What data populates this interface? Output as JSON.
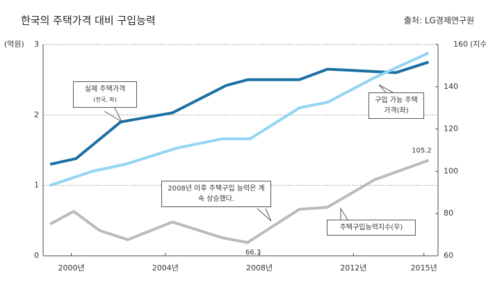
{
  "chart_data": {
    "type": "line",
    "title": "한국의 주택가격 대비 구입능력",
    "source": "출처: LG경제연구원",
    "ylabel": "(억원)",
    "y2label": "(지수)",
    "xlim": [
      1998.8,
      2015.6
    ],
    "xticks": [
      {
        "value": 2000,
        "label": "2000년"
      },
      {
        "value": 2004,
        "label": "2004년"
      },
      {
        "value": 2008,
        "label": "2008년"
      },
      {
        "value": 2012,
        "label": "2012년"
      },
      {
        "value": 2015,
        "label": "2015년"
      }
    ],
    "ylim": [
      0,
      3
    ],
    "yticks": [
      0,
      1,
      2,
      3
    ],
    "y2lim": [
      60,
      160
    ],
    "y2ticks": [
      60,
      80,
      100,
      120,
      140,
      160
    ],
    "grid": true,
    "series": [
      {
        "name": "실제 주택가격",
        "note": "(전국, 좌)",
        "color": "#1b70a3",
        "x": [
          1999.1,
          2000.2,
          2002.1,
          2004.3,
          2006.6,
          2007.5,
          2009.7,
          2010.9,
          2013.8,
          2015.2
        ],
        "values": [
          1.3,
          1.38,
          1.9,
          2.03,
          2.42,
          2.5,
          2.5,
          2.65,
          2.6,
          2.75
        ]
      },
      {
        "name": "구입 가능 주택가격(좌)",
        "color": "#93d4f3",
        "x": [
          1999.1,
          2000.9,
          2002.3,
          2004.5,
          2006.4,
          2007.6,
          2009.7,
          2010.9,
          2012.9,
          2015.2
        ],
        "values": [
          1.0,
          1.2,
          1.3,
          1.53,
          1.66,
          1.66,
          2.1,
          2.18,
          2.53,
          2.88
        ]
      },
      {
        "name": "주택구입능력지수(우)",
        "color": "#bbbbbb",
        "axis": "y2",
        "x": [
          1999.1,
          2000.1,
          2001.2,
          2002.4,
          2004.3,
          2006.4,
          2007.5,
          2009.7,
          2010.9,
          2012.9,
          2015.2
        ],
        "values": [
          75,
          81,
          72,
          67.6,
          76,
          68.6,
          66.3,
          82,
          83,
          96,
          105.2
        ]
      }
    ],
    "annotation": "2008년 이후 주택구입 능력은 계속 상승했다."
  }
}
